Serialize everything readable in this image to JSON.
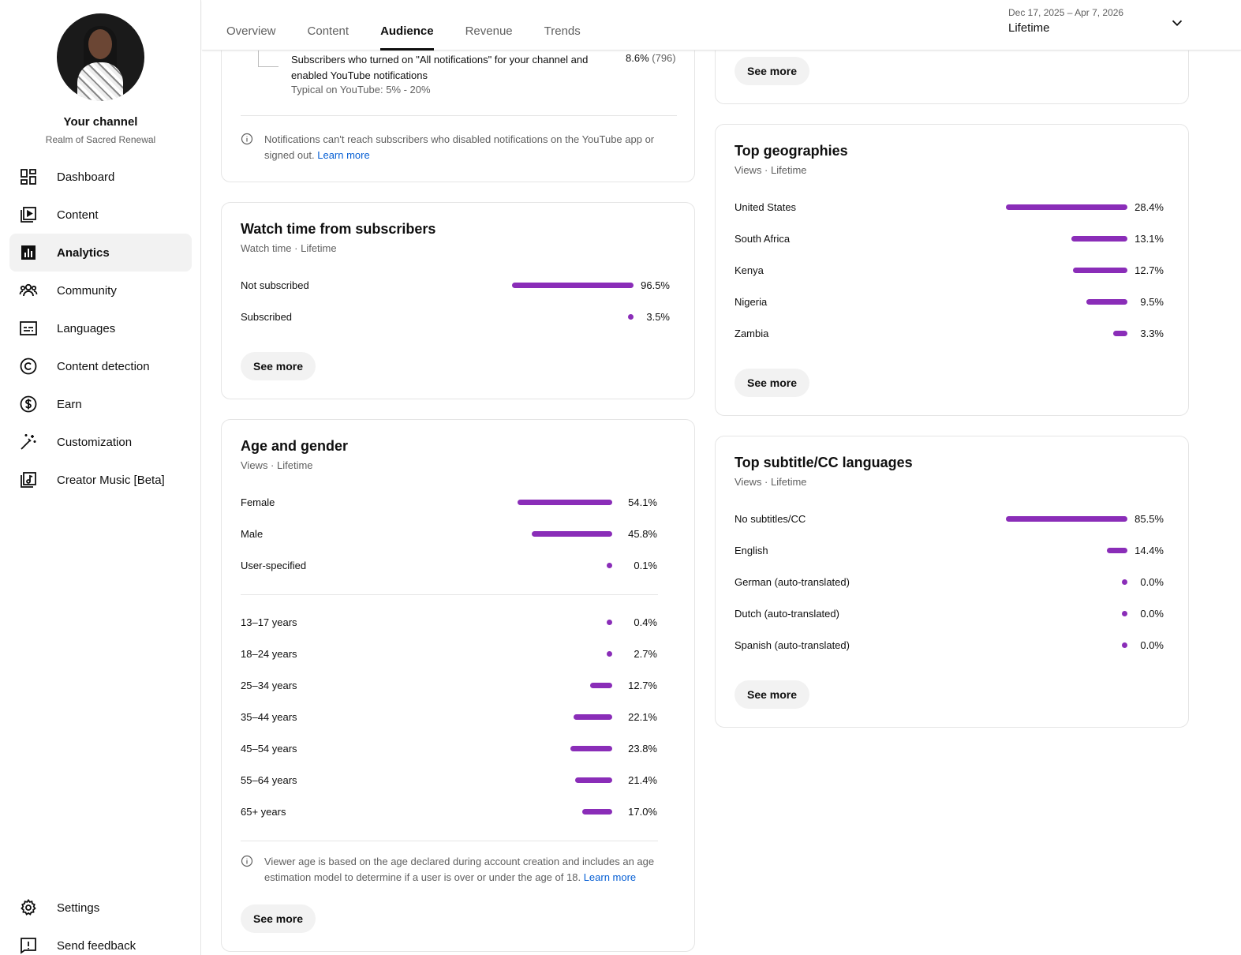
{
  "sidebar": {
    "channel_title": "Your channel",
    "channel_name": "Realm of Sacred Renewal",
    "items": [
      {
        "label": "Dashboard",
        "icon": "dashboard-icon"
      },
      {
        "label": "Content",
        "icon": "content-icon"
      },
      {
        "label": "Analytics",
        "icon": "analytics-icon",
        "active": true
      },
      {
        "label": "Community",
        "icon": "community-icon"
      },
      {
        "label": "Languages",
        "icon": "subtitles-icon"
      },
      {
        "label": "Content detection",
        "icon": "copyright-icon"
      },
      {
        "label": "Earn",
        "icon": "dollar-icon"
      },
      {
        "label": "Customization",
        "icon": "magic-wand-icon"
      },
      {
        "label": "Creator Music [Beta]",
        "icon": "music-icon"
      }
    ],
    "bottom_items": [
      {
        "label": "Settings",
        "icon": "gear-icon"
      },
      {
        "label": "Send feedback",
        "icon": "feedback-icon"
      }
    ]
  },
  "header": {
    "tabs": [
      "Overview",
      "Content",
      "Audience",
      "Revenue",
      "Trends"
    ],
    "active_tab": "Audience",
    "date_range": "Dec 17, 2025 – Apr 7, 2026",
    "period": "Lifetime"
  },
  "notifications_card": {
    "row_text_1": "Subscribers who turned on \"All notifications\" for your channel and",
    "row_text_2": "enabled YouTube notifications",
    "typical": "Typical on YouTube: 5% - 20%",
    "pct": "8.6%",
    "count": "(796)",
    "note_1": "Notifications can't reach subscribers who disabled notifications on the YouTube app or",
    "note_2": "signed out.",
    "learn_more": "Learn more"
  },
  "watch_time_card": {
    "title": "Watch time from subscribers",
    "subtitle": "Watch time · Lifetime",
    "rows": [
      {
        "label": "Not subscribed",
        "pct": "96.5%",
        "value": 96.5
      },
      {
        "label": "Subscribed",
        "pct": "3.5%",
        "value": 3.5
      }
    ],
    "see_more": "See more"
  },
  "age_gender_card": {
    "title": "Age and gender",
    "subtitle": "Views · Lifetime",
    "gender_rows": [
      {
        "label": "Female",
        "pct": "54.1%",
        "value": 54.1
      },
      {
        "label": "Male",
        "pct": "45.8%",
        "value": 45.8
      },
      {
        "label": "User-specified",
        "pct": "0.1%",
        "value": 0.1
      }
    ],
    "age_rows": [
      {
        "label": "13–17 years",
        "pct": "0.4%",
        "value": 0.4
      },
      {
        "label": "18–24 years",
        "pct": "2.7%",
        "value": 2.7
      },
      {
        "label": "25–34 years",
        "pct": "12.7%",
        "value": 12.7
      },
      {
        "label": "35–44 years",
        "pct": "22.1%",
        "value": 22.1
      },
      {
        "label": "45–54 years",
        "pct": "23.8%",
        "value": 23.8
      },
      {
        "label": "55–64 years",
        "pct": "21.4%",
        "value": 21.4
      },
      {
        "label": "65+ years",
        "pct": "17.0%",
        "value": 17.0
      }
    ],
    "note_1": "Viewer age is based on the age declared during account creation and includes an age",
    "note_2": "estimation model to determine if a user is over or under the age of 18.",
    "learn_more": "Learn more",
    "see_more": "See more"
  },
  "top_card": {
    "see_more": "See more"
  },
  "geographies_card": {
    "title": "Top geographies",
    "subtitle": "Views · Lifetime",
    "rows": [
      {
        "label": "United States",
        "pct": "28.4%",
        "value": 28.4
      },
      {
        "label": "South Africa",
        "pct": "13.1%",
        "value": 13.1
      },
      {
        "label": "Kenya",
        "pct": "12.7%",
        "value": 12.7
      },
      {
        "label": "Nigeria",
        "pct": "9.5%",
        "value": 9.5
      },
      {
        "label": "Zambia",
        "pct": "3.3%",
        "value": 3.3
      }
    ],
    "see_more": "See more"
  },
  "subtitles_card": {
    "title": "Top subtitle/CC languages",
    "subtitle": "Views · Lifetime",
    "rows": [
      {
        "label": "No subtitles/CC",
        "pct": "85.5%",
        "value": 85.5
      },
      {
        "label": "English",
        "pct": "14.4%",
        "value": 14.4
      },
      {
        "label": "German (auto-translated)",
        "pct": "0.0%",
        "value": 0.0
      },
      {
        "label": "Dutch (auto-translated)",
        "pct": "0.0%",
        "value": 0.0
      },
      {
        "label": "Spanish (auto-translated)",
        "pct": "0.0%",
        "value": 0.0
      }
    ],
    "see_more": "See more"
  },
  "colors": {
    "bar": "#8a2db8",
    "link": "#065fd4"
  }
}
